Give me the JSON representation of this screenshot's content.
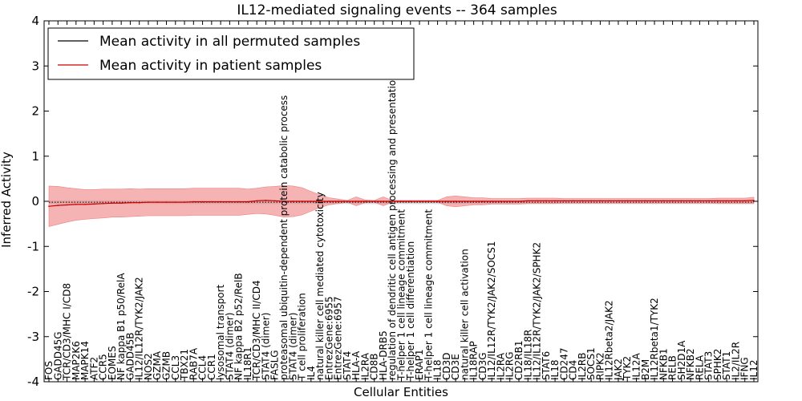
{
  "chart_data": {
    "type": "line",
    "title": "IL12-mediated signaling events -- 364 samples",
    "xlabel": "Cellular Entities",
    "ylabel": "Inferred Activity",
    "ylim": [
      -4,
      4
    ],
    "yticks": [
      -4,
      -3,
      -2,
      -1,
      0,
      1,
      2,
      3,
      4
    ],
    "legend": {
      "position": "top-left",
      "entries": [
        {
          "label": "Mean activity in all permuted samples",
          "color": "#000000"
        },
        {
          "label": "Mean activity in patient samples",
          "color": "#cc0000"
        }
      ]
    },
    "band_color": "#f08080",
    "permuted_band_color": "#b0b0b0",
    "categories": [
      "FOS",
      "GADD45G",
      "TCR/CD3/MHC I/CD8",
      "MAP2K6",
      "MAPK14",
      "ATF2",
      "CCR5",
      "EOMES",
      "NF kappa B1 p50/RelA",
      "GADD45B",
      "IL12/IL12R/TYK2/JAK2",
      "NOS2",
      "GZMA",
      "GZMB",
      "CCL3",
      "TBX21",
      "RAB7A",
      "CCL4",
      "CCR1",
      "lysosomal transport",
      "STAT4 (dimer)",
      "NF kappa B2 p52/RelB",
      "IL18R1",
      "TCR/CD3/MHC II/CD4",
      "STAT4 (dimer)",
      "FASLG",
      "proteasomal ubiquitin-dependent protein catabolic process",
      "STAT4 (dimer)",
      "T cell proliferation",
      "IL4",
      "natural killer cell mediated cytotoxicity",
      "EntrezGene:6955",
      "EntrezGene:6957",
      "STAT4",
      "HLA-A",
      "IL2RA",
      "CD8B",
      "HLA-DRB5",
      "regulation of dendritic cell antigen processing and presentation",
      "T-helper 1 cell lineage commitment",
      "T-helper 1 cell differentiation",
      "ERAP1",
      "T-helper 1 cell lineage commitment",
      "IL18",
      "CD3D",
      "CD3E",
      "natural killer cell activation",
      "IL18RAP",
      "CD3G",
      "IL12/IL12R/TYK2/JAK2/SOCS1",
      "IL2RA",
      "IL2RG",
      "CD2RB1",
      "IL18/IL18R",
      "IL12/IL12R/TYK2/JAK2/SPHK2",
      "STAT6",
      "IL18",
      "CD247",
      "CD4",
      "IL2RB",
      "SOCS1",
      "RIPK2",
      "IL12Rbeta2/JAK2",
      "JAK2",
      "TYK2",
      "IL12A",
      "B2M",
      "IL12Rbeta1/TYK2",
      "NFKB1",
      "RELB",
      "SH2D1A",
      "NFKB2",
      "RELA",
      "STAT3",
      "SPHK2",
      "STAT1",
      "IL2/IL2R",
      "IFNG",
      "IL12"
    ],
    "patient_mean": [
      -0.11,
      -0.09,
      -0.08,
      -0.07,
      -0.07,
      -0.06,
      -0.05,
      -0.04,
      -0.04,
      -0.03,
      -0.03,
      -0.02,
      -0.02,
      -0.02,
      -0.02,
      -0.02,
      -0.01,
      -0.01,
      -0.01,
      -0.01,
      -0.01,
      -0.01,
      -0.01,
      0.01,
      0.02,
      0.01,
      0.0,
      0.0,
      0.0,
      0.0,
      0.0,
      0.0,
      0.0,
      0.0,
      0.0,
      0.0,
      0.0,
      0.0,
      0.0,
      0.0,
      0.0,
      0.0,
      0.0,
      0.0,
      0.0,
      0.0,
      0.0,
      0.0,
      0.0,
      0.0,
      0.0,
      0.0,
      0.0,
      0.01,
      0.01,
      0.01,
      0.01,
      0.01,
      0.01,
      0.01,
      0.01,
      0.01,
      0.01,
      0.01,
      0.01,
      0.01,
      0.01,
      0.01,
      0.01,
      0.01,
      0.01,
      0.01,
      0.01,
      0.01,
      0.01,
      0.01,
      0.01,
      0.01,
      0.02
    ],
    "permuted_mean": [
      -0.02,
      -0.02,
      -0.02,
      -0.02,
      -0.02,
      -0.02,
      -0.02,
      -0.02,
      -0.02,
      -0.02,
      -0.02,
      -0.02,
      -0.02,
      -0.02,
      -0.02,
      -0.02,
      -0.02,
      -0.02,
      -0.02,
      -0.02,
      -0.02,
      -0.02,
      -0.02,
      -0.02,
      -0.02,
      -0.02,
      -0.02,
      -0.02,
      -0.02,
      -0.02,
      -0.02,
      -0.02,
      -0.02,
      -0.02,
      -0.02,
      -0.02,
      -0.02,
      -0.02,
      -0.02,
      -0.02,
      -0.02,
      -0.02,
      -0.02,
      -0.02,
      -0.02,
      -0.02,
      -0.02,
      -0.02,
      -0.02,
      -0.02,
      -0.02,
      -0.02,
      -0.02,
      -0.02,
      -0.02,
      -0.02,
      -0.02,
      -0.02,
      -0.02,
      -0.02,
      -0.02,
      -0.02,
      -0.02,
      -0.02,
      -0.02,
      -0.02,
      -0.02,
      -0.02,
      -0.02,
      -0.02,
      -0.02,
      -0.02,
      -0.02,
      -0.02,
      -0.02,
      -0.02,
      -0.02,
      -0.02,
      -0.02
    ],
    "band_halfwidth": [
      0.45,
      0.42,
      0.38,
      0.35,
      0.33,
      0.32,
      0.32,
      0.31,
      0.31,
      0.31,
      0.3,
      0.3,
      0.3,
      0.3,
      0.3,
      0.3,
      0.3,
      0.3,
      0.3,
      0.3,
      0.3,
      0.3,
      0.28,
      0.28,
      0.3,
      0.32,
      0.35,
      0.34,
      0.3,
      0.22,
      0.14,
      0.08,
      0.05,
      0.02,
      0.1,
      0.03,
      0.02,
      0.1,
      0.02,
      0.02,
      0.02,
      0.02,
      0.02,
      0.02,
      0.1,
      0.12,
      0.1,
      0.08,
      0.08,
      0.06,
      0.06,
      0.06,
      0.06,
      0.06,
      0.06,
      0.06,
      0.06,
      0.05,
      0.05,
      0.05,
      0.05,
      0.05,
      0.05,
      0.05,
      0.05,
      0.05,
      0.05,
      0.05,
      0.05,
      0.05,
      0.05,
      0.05,
      0.05,
      0.05,
      0.06,
      0.06,
      0.06,
      0.06,
      0.07
    ],
    "permuted_halfwidth": [
      0.04,
      0.04,
      0.04,
      0.04,
      0.04,
      0.04,
      0.04,
      0.04,
      0.04,
      0.04,
      0.04,
      0.04,
      0.04,
      0.04,
      0.04,
      0.04,
      0.04,
      0.04,
      0.04,
      0.04,
      0.04,
      0.04,
      0.04,
      0.04,
      0.04,
      0.04,
      0.04,
      0.04,
      0.04,
      0.04,
      0.04,
      0.04,
      0.04,
      0.04,
      0.04,
      0.04,
      0.04,
      0.04,
      0.04,
      0.04,
      0.04,
      0.04,
      0.04,
      0.04,
      0.04,
      0.04,
      0.04,
      0.04,
      0.04,
      0.04,
      0.04,
      0.04,
      0.04,
      0.04,
      0.04,
      0.04,
      0.04,
      0.04,
      0.04,
      0.04,
      0.04,
      0.04,
      0.04,
      0.04,
      0.04,
      0.04,
      0.04,
      0.04,
      0.04,
      0.04,
      0.04,
      0.04,
      0.04,
      0.04,
      0.04,
      0.04,
      0.04,
      0.04,
      0.04
    ]
  }
}
